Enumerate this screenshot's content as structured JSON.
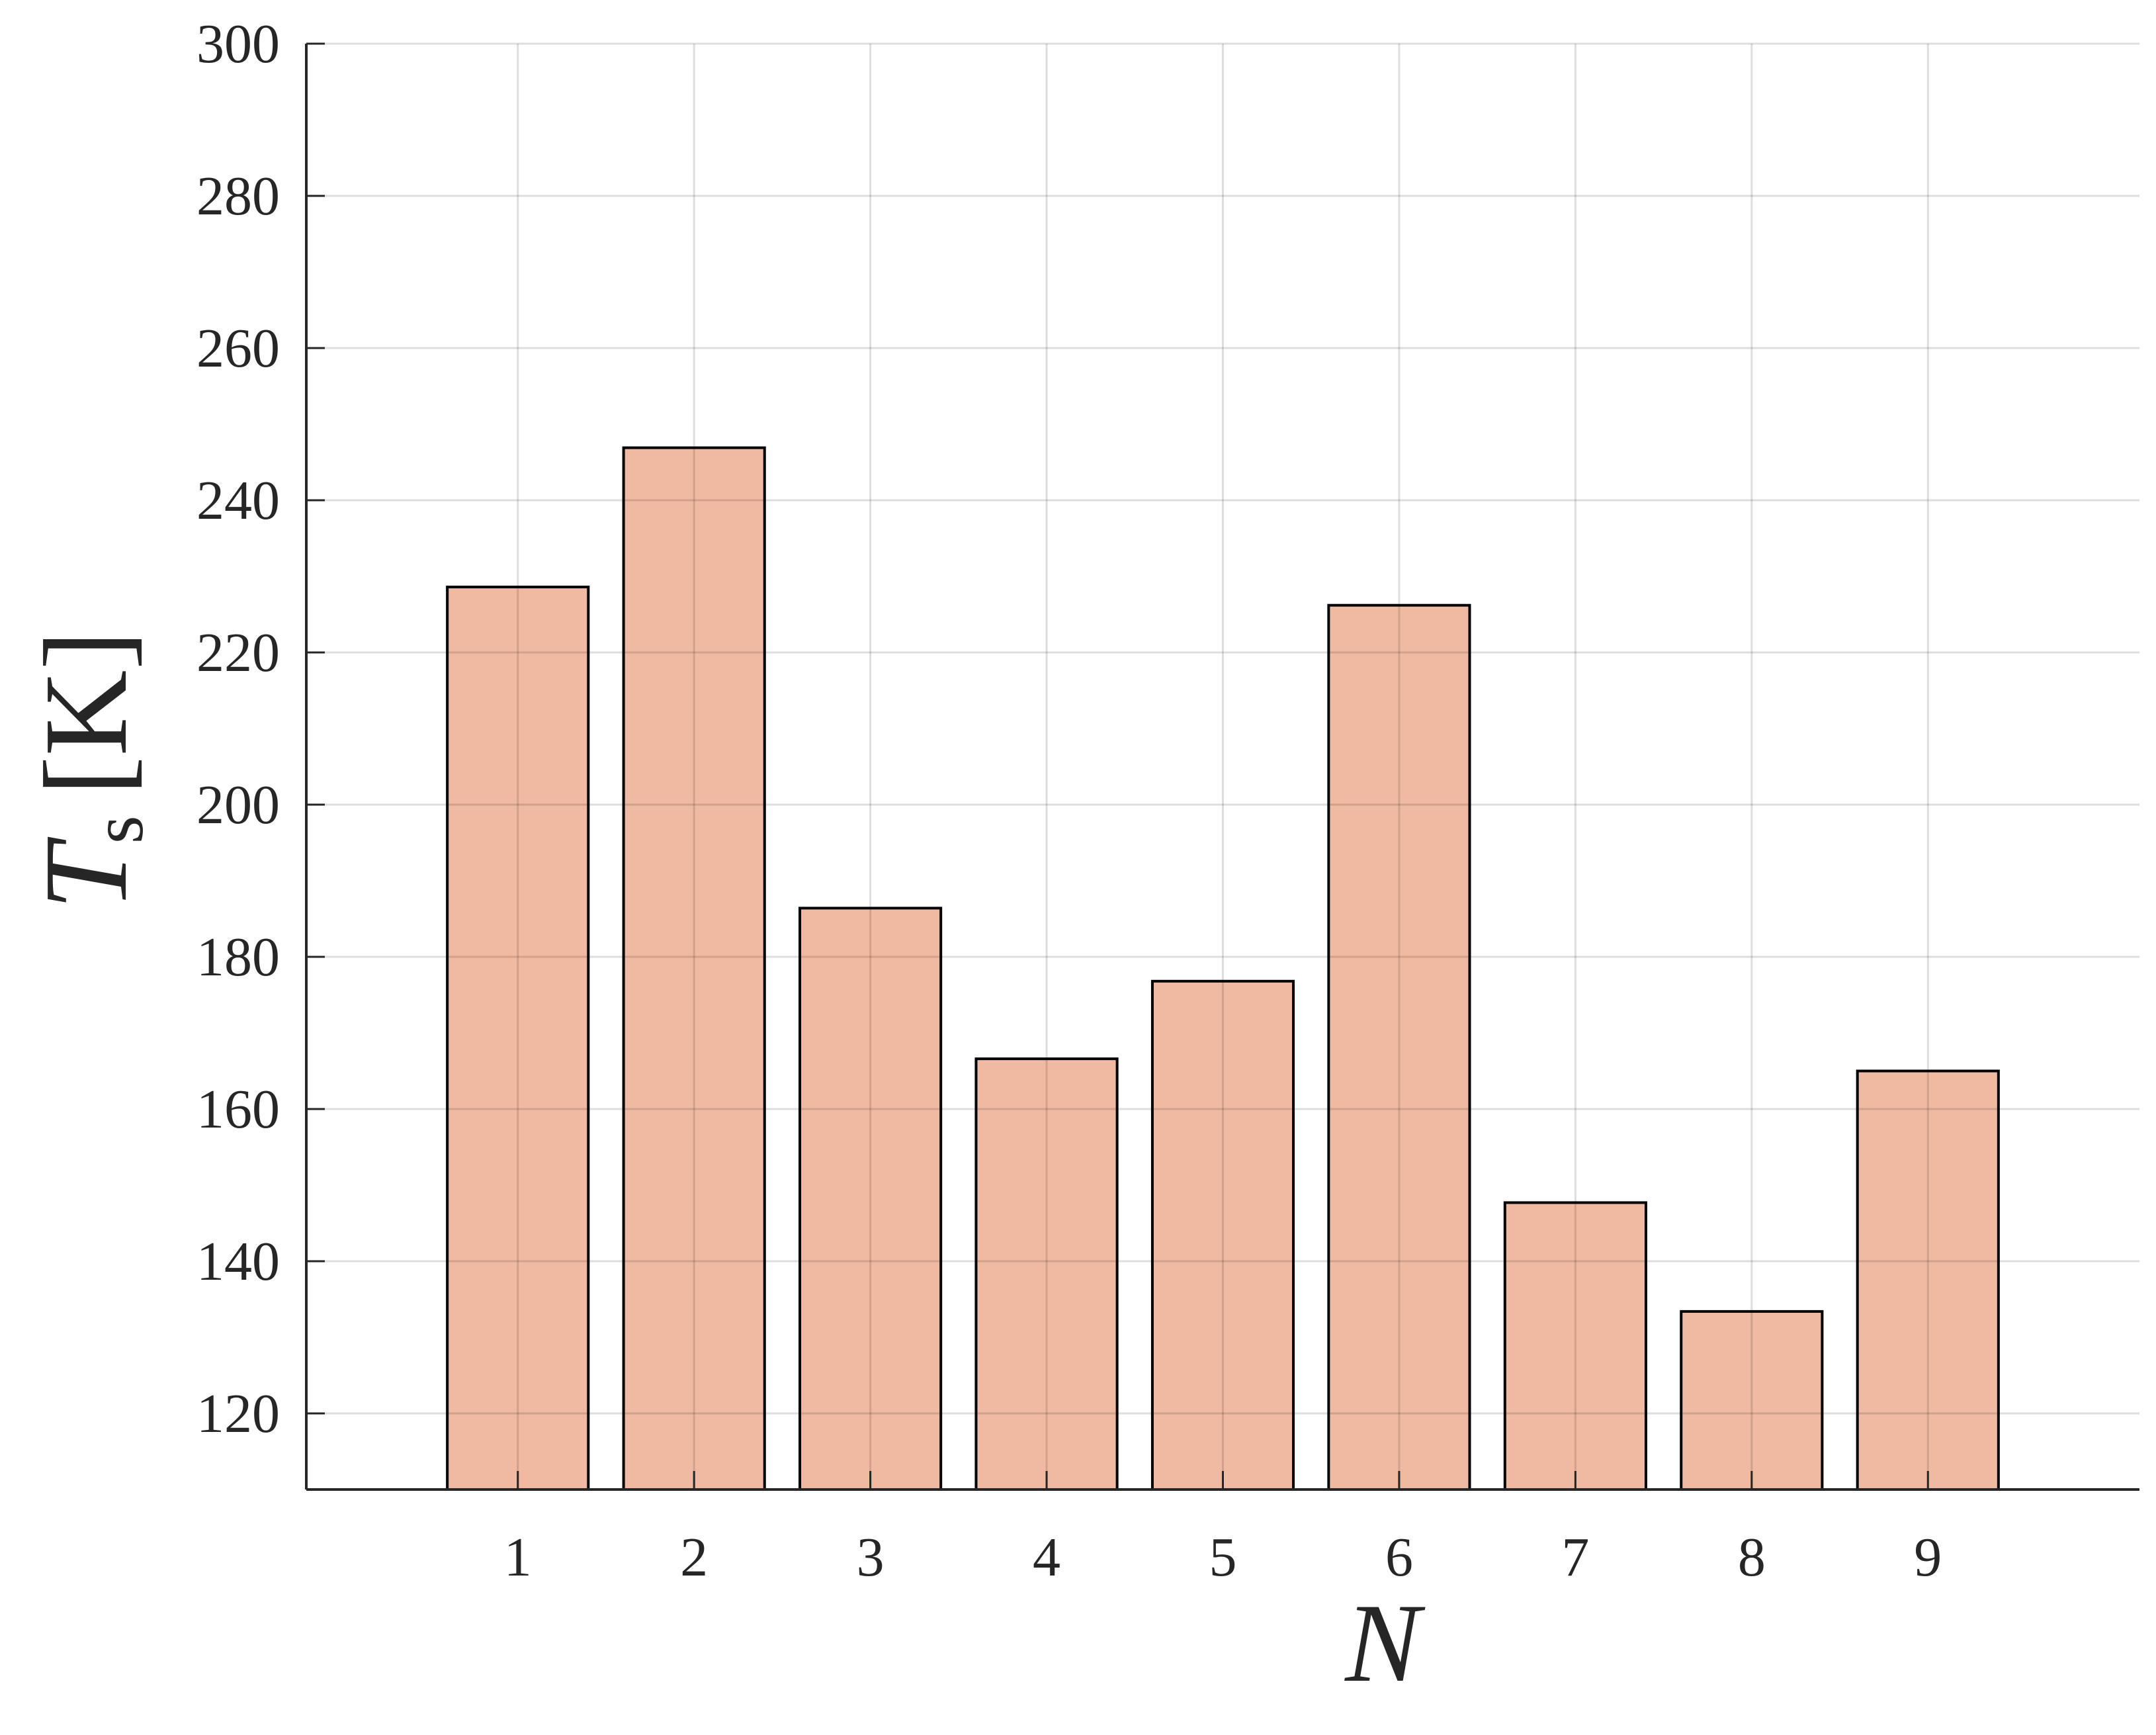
{
  "chart_data": {
    "type": "bar",
    "x": [
      1,
      2,
      3,
      4,
      5,
      6,
      7,
      8,
      9
    ],
    "values": [
      228.6,
      246.9,
      186.4,
      166.6,
      176.8,
      226.2,
      147.7,
      133.4,
      165.0
    ],
    "color": "#f0b9a1",
    "xlim": [
      -0.2,
      10.2
    ],
    "xticks": [
      1,
      2,
      3,
      4,
      5,
      6,
      7,
      8,
      9
    ],
    "ylim": [
      110,
      300
    ],
    "yticks": [
      120,
      140,
      160,
      180,
      200,
      220,
      240,
      260,
      280,
      300
    ],
    "grid": true,
    "x_label": "N",
    "y_label": {
      "symbol": "T",
      "subscript": "s",
      "unit": "[K]"
    }
  }
}
